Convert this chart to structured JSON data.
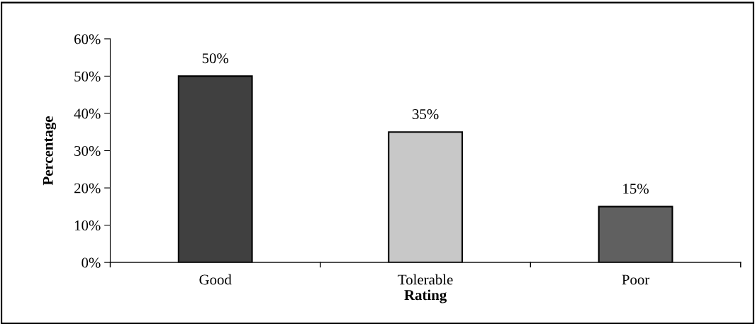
{
  "chart_data": {
    "type": "bar",
    "xlabel": "Rating",
    "ylabel": "Percentage",
    "categories": [
      "Good",
      "Tolerable",
      "Poor"
    ],
    "values": [
      50,
      35,
      15
    ],
    "value_labels": [
      "50%",
      "35%",
      "15%"
    ],
    "colors": [
      "#404040",
      "#c8c8c8",
      "#606060"
    ],
    "ylim": [
      0,
      60
    ],
    "yticks": [
      {
        "value": 0,
        "label": "0%"
      },
      {
        "value": 10,
        "label": "10%"
      },
      {
        "value": 20,
        "label": "20%"
      },
      {
        "value": 30,
        "label": "30%"
      },
      {
        "value": 40,
        "label": "40%"
      },
      {
        "value": 50,
        "label": "50%"
      },
      {
        "value": 60,
        "label": "60%"
      }
    ],
    "grid": false,
    "legend": false
  }
}
